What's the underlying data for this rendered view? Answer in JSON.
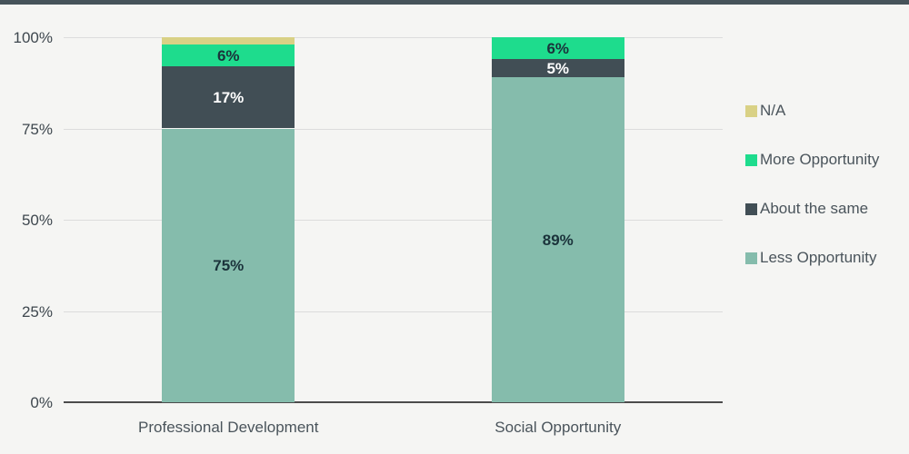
{
  "page": {
    "background_color": "#f5f5f3",
    "topbar_color": "#46535a"
  },
  "chart_data": {
    "type": "bar",
    "stacked": true,
    "orientation": "vertical",
    "title": "",
    "xlabel": "",
    "ylabel": "",
    "categories": [
      "Professional Development",
      "Social Opportunity"
    ],
    "series": [
      {
        "name": "Less Opportunity",
        "color": "#85bcac",
        "values": [
          75,
          89
        ],
        "labels": [
          "75%",
          "89%"
        ],
        "label_color": "#1b333b"
      },
      {
        "name": "About the same",
        "color": "#414e55",
        "values": [
          17,
          5
        ],
        "labels": [
          "17%",
          "5%"
        ],
        "label_color": "#ffffff"
      },
      {
        "name": "More Opportunity",
        "color": "#1edc8d",
        "values": [
          6,
          6
        ],
        "labels": [
          "6%",
          "6%"
        ],
        "label_color": "#1b333b"
      },
      {
        "name": "N/A",
        "color": "#d9d185",
        "values": [
          2,
          0
        ],
        "labels": [
          "",
          ""
        ],
        "label_color": "#1b333b"
      }
    ],
    "y_ticks": [
      {
        "label": "0%",
        "value": 0
      },
      {
        "label": "25%",
        "value": 25
      },
      {
        "label": "50%",
        "value": 50
      },
      {
        "label": "75%",
        "value": 75
      },
      {
        "label": "100%",
        "value": 100
      }
    ],
    "ylim": [
      0,
      100
    ],
    "grid": true,
    "legend_position": "right",
    "legend_order": [
      "N/A",
      "More Opportunity",
      "About the same",
      "Less Opportunity"
    ]
  }
}
